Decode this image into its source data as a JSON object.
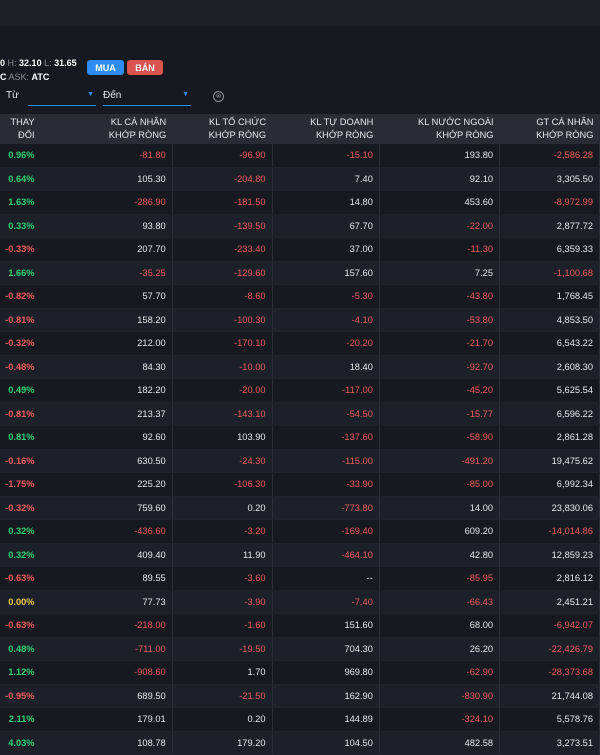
{
  "quote": {
    "line1_prefix": "0",
    "h_label": "H:",
    "h_value": "32.10",
    "l_label": "L:",
    "l_value": "31.65",
    "line2_prefix": "C",
    "ask_label": "ASK:",
    "ask_value": "ATC"
  },
  "buttons": {
    "buy": "MUA",
    "sell": "BÁN"
  },
  "filters": {
    "from_label": "Từ",
    "to_label": "Đến",
    "caret": "▼",
    "clear": "⊗"
  },
  "columns": [
    "THAY ĐỔI",
    "KL CÁ NHÂN\nKHỚP RÒNG",
    "KL TỔ CHỨC\nKHỚP RÒNG",
    "KL TỰ DOANH\nKHỚP RÒNG",
    "KL NƯỚC NGOÀI\nKHỚP RÒNG",
    "GT CÁ NHÂN\nKHỚP RÒNG"
  ],
  "rows": [
    [
      "0.96%",
      "-81.80",
      "-96.90",
      "-15.10",
      "193.80",
      "-2,586.28"
    ],
    [
      "0.64%",
      "105.30",
      "-204.80",
      "7.40",
      "92.10",
      "3,305.50"
    ],
    [
      "1.63%",
      "-286.90",
      "-181.50",
      "14.80",
      "453.60",
      "-8,972.99"
    ],
    [
      "0.33%",
      "93.80",
      "-139.50",
      "67.70",
      "-22.00",
      "2,877.72"
    ],
    [
      "-0.33%",
      "207.70",
      "-233.40",
      "37.00",
      "-11.30",
      "6,359.33"
    ],
    [
      "1.66%",
      "-35.25",
      "-129.60",
      "157.60",
      "7.25",
      "-1,100.68"
    ],
    [
      "-0.82%",
      "57.70",
      "-8.60",
      "-5.30",
      "-43.80",
      "1,768.45"
    ],
    [
      "-0.81%",
      "158.20",
      "-100.30",
      "-4.10",
      "-53.80",
      "4,853.50"
    ],
    [
      "-0.32%",
      "212.00",
      "-170.10",
      "-20.20",
      "-21.70",
      "6,543.22"
    ],
    [
      "-0.48%",
      "84.30",
      "-10.00",
      "18.40",
      "-92.70",
      "2,608.30"
    ],
    [
      "0.49%",
      "182.20",
      "-20.00",
      "-117.00",
      "-45.20",
      "5,625.54"
    ],
    [
      "-0.81%",
      "213.37",
      "-143.10",
      "-54.50",
      "-15.77",
      "6,596.22"
    ],
    [
      "0.81%",
      "92.60",
      "103.90",
      "-137.60",
      "-58.90",
      "2,861.28"
    ],
    [
      "-0.16%",
      "630.50",
      "-24.30",
      "-115.00",
      "-491.20",
      "19,475.62"
    ],
    [
      "-1.75%",
      "225.20",
      "-106.30",
      "-33.90",
      "-85.00",
      "6,992.34"
    ],
    [
      "-0.32%",
      "759.60",
      "0.20",
      "-773.80",
      "14.00",
      "23,830.06"
    ],
    [
      "0.32%",
      "-436.60",
      "-3.20",
      "-169.40",
      "609.20",
      "-14,014.86"
    ],
    [
      "0.32%",
      "409.40",
      "11.90",
      "-464.10",
      "42.80",
      "12,859.23"
    ],
    [
      "-0.63%",
      "89.55",
      "-3.60",
      "--",
      "-85.95",
      "2,816.12"
    ],
    [
      "0.00%",
      "77.73",
      "-3.90",
      "-7.40",
      "-66.43",
      "2,451.21"
    ],
    [
      "-0.63%",
      "-218.00",
      "-1.60",
      "151.60",
      "68.00",
      "-6,942.07"
    ],
    [
      "0.48%",
      "-711.00",
      "-19.50",
      "704.30",
      "26.20",
      "-22,426.79"
    ],
    [
      "1.12%",
      "-908.60",
      "1.70",
      "969.80",
      "-62.90",
      "-28,373.68"
    ],
    [
      "-0.95%",
      "689.50",
      "-21.50",
      "162.90",
      "-830.90",
      "21,744.08"
    ],
    [
      "2.11%",
      "179.01",
      "0.20",
      "144.89",
      "-324.10",
      "5,578.76"
    ],
    [
      "4.03%",
      "108.78",
      "179.20",
      "104.50",
      "482.58",
      "3,273.51"
    ]
  ]
}
